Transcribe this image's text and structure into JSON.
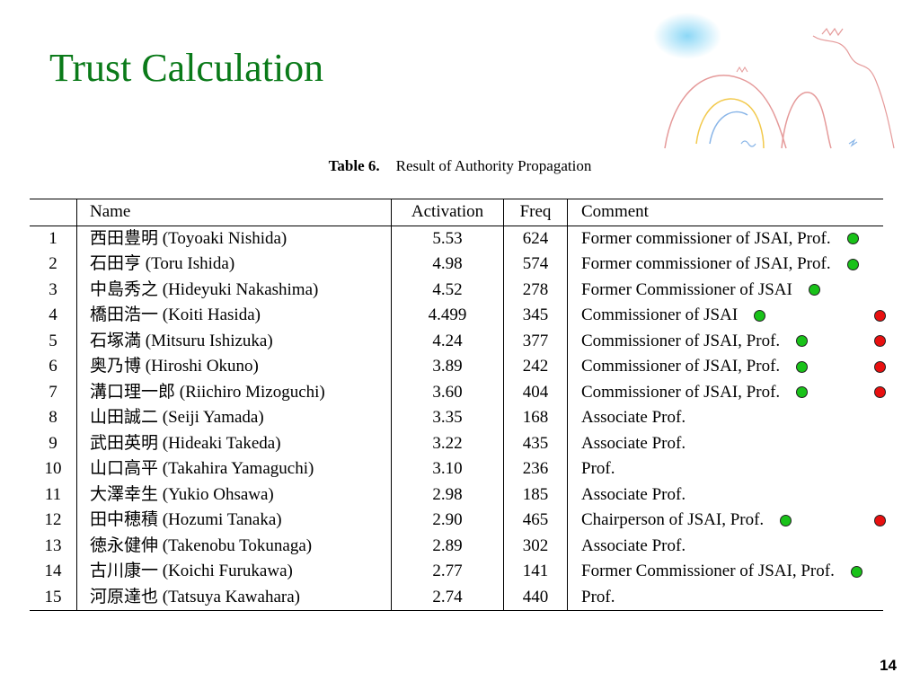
{
  "slide": {
    "title": "Trust Calculation",
    "page_number": "14"
  },
  "table": {
    "caption_label": "Table 6.",
    "caption_text": "Result of Authority Propagation",
    "headers": {
      "no": "",
      "name": "Name",
      "activation": "Activation",
      "freq": "Freq",
      "comment": "Comment"
    },
    "rows": [
      {
        "no": "1",
        "name": "西田豊明 (Toyoaki Nishida)",
        "activation": "5.53",
        "freq": "624",
        "comment": "Former commissioner of JSAI, Prof."
      },
      {
        "no": "2",
        "name": "石田亨 (Toru Ishida)",
        "activation": "4.98",
        "freq": "574",
        "comment": "Former commissioner of JSAI, Prof."
      },
      {
        "no": "3",
        "name": "中島秀之 (Hideyuki Nakashima)",
        "activation": "4.52",
        "freq": "278",
        "comment": "Former Commissioner of JSAI"
      },
      {
        "no": "4",
        "name": "橋田浩一 (Koiti Hasida)",
        "activation": "4.499",
        "freq": "345",
        "comment": "Commissioner of JSAI"
      },
      {
        "no": "5",
        "name": "石塚満 (Mitsuru Ishizuka)",
        "activation": "4.24",
        "freq": "377",
        "comment": "Commissioner of JSAI, Prof."
      },
      {
        "no": "6",
        "name": "奥乃博 (Hiroshi Okuno)",
        "activation": "3.89",
        "freq": "242",
        "comment": "Commissioner of JSAI, Prof."
      },
      {
        "no": "7",
        "name": "溝口理一郎 (Riichiro Mizoguchi)",
        "activation": "3.60",
        "freq": "404",
        "comment": "Commissioner of JSAI, Prof."
      },
      {
        "no": "8",
        "name": "山田誠二 (Seiji Yamada)",
        "activation": "3.35",
        "freq": "168",
        "comment": "Associate Prof."
      },
      {
        "no": "9",
        "name": "武田英明 (Hideaki Takeda)",
        "activation": "3.22",
        "freq": "435",
        "comment": "Associate Prof."
      },
      {
        "no": "10",
        "name": "山口高平 (Takahira Yamaguchi)",
        "activation": "3.10",
        "freq": "236",
        "comment": "Prof."
      },
      {
        "no": "11",
        "name": "大澤幸生 (Yukio Ohsawa)",
        "activation": "2.98",
        "freq": "185",
        "comment": "Associate Prof."
      },
      {
        "no": "12",
        "name": "田中穂積 (Hozumi Tanaka)",
        "activation": "2.90",
        "freq": "465",
        "comment": "Chairperson of JSAI, Prof."
      },
      {
        "no": "13",
        "name": "徳永健伸 (Takenobu Tokunaga)",
        "activation": "2.89",
        "freq": "302",
        "comment": "Associate Prof."
      },
      {
        "no": "14",
        "name": "古川康一 (Koichi Furukawa)",
        "activation": "2.77",
        "freq": "141",
        "comment": "Former Commissioner of JSAI, Prof."
      },
      {
        "no": "15",
        "name": "河原達也 (Tatsuya Kawahara)",
        "activation": "2.74",
        "freq": "440",
        "comment": "Prof."
      }
    ]
  },
  "markers": {
    "colors": {
      "green": "#19c219",
      "red": "#e81010"
    },
    "by_row": [
      {
        "row": 1,
        "green": true,
        "red": false
      },
      {
        "row": 2,
        "green": true,
        "red": false
      },
      {
        "row": 3,
        "green": true,
        "red": false
      },
      {
        "row": 4,
        "green": true,
        "red": true
      },
      {
        "row": 5,
        "green": true,
        "red": true
      },
      {
        "row": 6,
        "green": true,
        "red": true
      },
      {
        "row": 7,
        "green": true,
        "red": true
      },
      {
        "row": 12,
        "green": true,
        "red": true
      },
      {
        "row": 14,
        "green": true,
        "red": false
      }
    ]
  }
}
